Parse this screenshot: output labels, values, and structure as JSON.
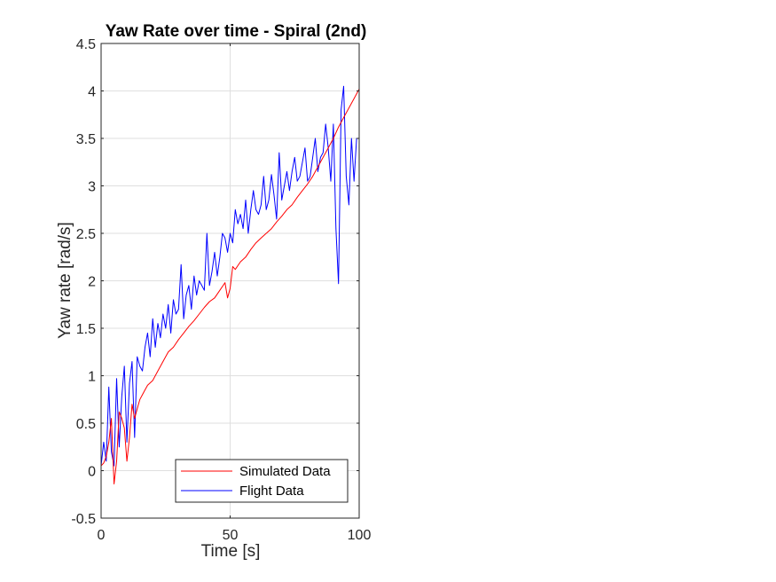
{
  "chart_data": {
    "type": "line",
    "title": "Yaw Rate over time - Spiral (2nd)",
    "xlabel": "Time [s]",
    "ylabel": "Yaw rate [rad/s]",
    "xlim": [
      0,
      100
    ],
    "ylim": [
      -0.5,
      4.5
    ],
    "xticks": [
      0,
      50,
      100
    ],
    "xtick_labels": [
      "0",
      "50",
      "100"
    ],
    "yticks": [
      -0.5,
      0,
      0.5,
      1,
      1.5,
      2,
      2.5,
      3,
      3.5,
      4,
      4.5
    ],
    "ytick_labels": [
      "-0.5",
      "0",
      "0.5",
      "1",
      "1.5",
      "2",
      "2.5",
      "3",
      "3.5",
      "4",
      "4.5"
    ],
    "grid": true,
    "legend_position": "bottom-right",
    "colors": {
      "simulated": "#ff0000",
      "flight": "#0000ff",
      "axes": "#262626",
      "grid": "#dfdfdf"
    },
    "series": [
      {
        "name": "Simulated Data",
        "color": "#ff0000",
        "x": [
          0,
          1,
          2,
          3,
          4,
          5,
          6,
          7,
          8,
          9,
          10,
          11,
          12,
          13,
          14,
          15,
          16,
          17,
          18,
          20,
          22,
          24,
          26,
          28,
          30,
          32,
          34,
          36,
          38,
          40,
          42,
          44,
          46,
          48,
          49,
          50,
          51,
          52,
          54,
          56,
          58,
          60,
          62,
          64,
          66,
          68,
          70,
          72,
          74,
          76,
          78,
          80,
          82,
          84,
          86,
          88,
          90,
          92,
          94,
          96,
          98,
          100
        ],
        "y": [
          0.05,
          0.08,
          0.15,
          0.3,
          0.55,
          -0.14,
          0.1,
          0.62,
          0.55,
          0.45,
          0.1,
          0.35,
          0.7,
          0.55,
          0.65,
          0.75,
          0.8,
          0.85,
          0.9,
          0.95,
          1.05,
          1.15,
          1.25,
          1.3,
          1.38,
          1.45,
          1.52,
          1.58,
          1.65,
          1.72,
          1.78,
          1.82,
          1.9,
          1.98,
          1.82,
          1.92,
          2.15,
          2.12,
          2.2,
          2.25,
          2.33,
          2.4,
          2.45,
          2.5,
          2.55,
          2.62,
          2.68,
          2.75,
          2.8,
          2.88,
          2.95,
          3.02,
          3.1,
          3.2,
          3.3,
          3.4,
          3.5,
          3.62,
          3.72,
          3.82,
          3.92,
          4.02
        ]
      },
      {
        "name": "Flight Data",
        "color": "#0000ff",
        "x": [
          0,
          1,
          2,
          3,
          4,
          5,
          6,
          7,
          8,
          9,
          10,
          11,
          12,
          13,
          14,
          15,
          16,
          17,
          18,
          19,
          20,
          21,
          22,
          23,
          24,
          25,
          26,
          27,
          28,
          29,
          30,
          31,
          32,
          33,
          34,
          35,
          36,
          37,
          38,
          39,
          40,
          41,
          42,
          43,
          44,
          45,
          46,
          47,
          48,
          49,
          50,
          51,
          52,
          53,
          54,
          55,
          56,
          57,
          58,
          59,
          60,
          61,
          62,
          63,
          64,
          65,
          66,
          67,
          68,
          69,
          70,
          71,
          72,
          73,
          74,
          75,
          76,
          77,
          78,
          79,
          80,
          81,
          82,
          83,
          84,
          85,
          86,
          87,
          88,
          89,
          90,
          91,
          92,
          93,
          94,
          95,
          96,
          97,
          98,
          99,
          100
        ],
        "y": [
          0.05,
          0.3,
          0.1,
          0.88,
          0.2,
          0.05,
          0.97,
          0.25,
          0.78,
          1.1,
          0.3,
          0.92,
          1.15,
          0.35,
          1.2,
          1.1,
          1.05,
          1.3,
          1.45,
          1.2,
          1.6,
          1.3,
          1.55,
          1.4,
          1.65,
          1.5,
          1.75,
          1.45,
          1.8,
          1.65,
          1.7,
          2.17,
          1.6,
          1.85,
          1.95,
          1.7,
          2.05,
          1.85,
          2.0,
          1.95,
          1.9,
          2.5,
          1.95,
          2.1,
          2.3,
          2.05,
          2.25,
          2.5,
          2.45,
          2.3,
          2.5,
          2.4,
          2.75,
          2.6,
          2.7,
          2.55,
          2.85,
          2.5,
          2.75,
          2.95,
          2.75,
          2.7,
          2.8,
          3.1,
          2.75,
          2.85,
          3.12,
          2.9,
          2.65,
          3.35,
          2.85,
          3.0,
          3.15,
          2.95,
          3.15,
          3.3,
          3.05,
          3.1,
          3.25,
          3.4,
          3.05,
          3.1,
          3.3,
          3.5,
          3.15,
          3.3,
          3.35,
          3.65,
          3.4,
          3.05,
          3.65,
          2.55,
          1.97,
          3.8,
          4.05,
          3.1,
          2.8,
          3.5,
          3.05,
          3.5,
          3.5
        ]
      }
    ]
  }
}
